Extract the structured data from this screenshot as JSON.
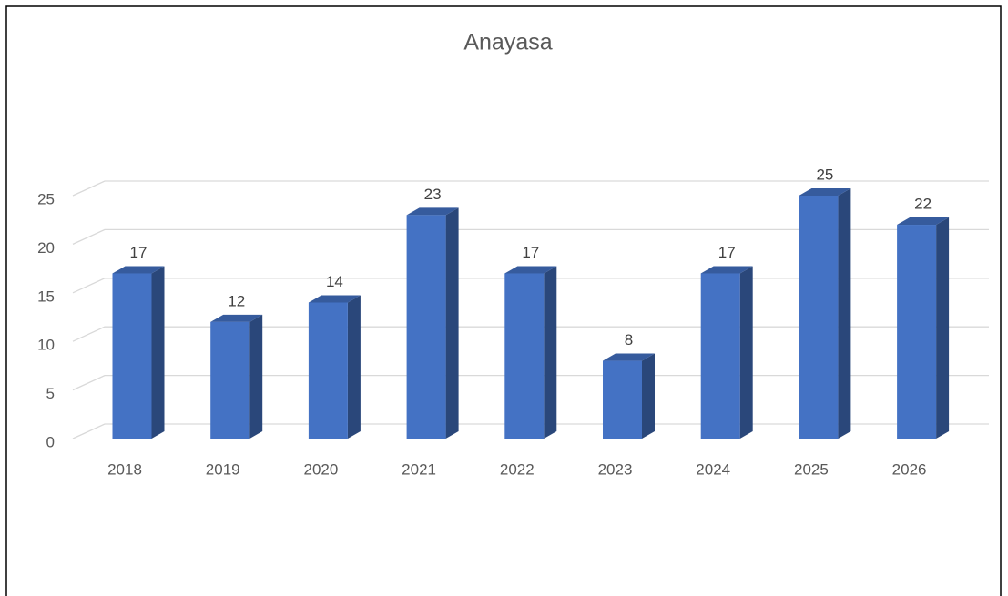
{
  "chart_data": {
    "type": "bar",
    "title": "Anayasa",
    "categories": [
      "2018",
      "2019",
      "2020",
      "2021",
      "2022",
      "2023",
      "2024",
      "2025",
      "2026"
    ],
    "values": [
      17,
      12,
      14,
      23,
      17,
      8,
      17,
      25,
      22
    ],
    "color": "#4472c4",
    "ylim": [
      0,
      25
    ],
    "yticks": [
      0,
      5,
      10,
      15,
      20,
      25
    ],
    "grid": true
  }
}
